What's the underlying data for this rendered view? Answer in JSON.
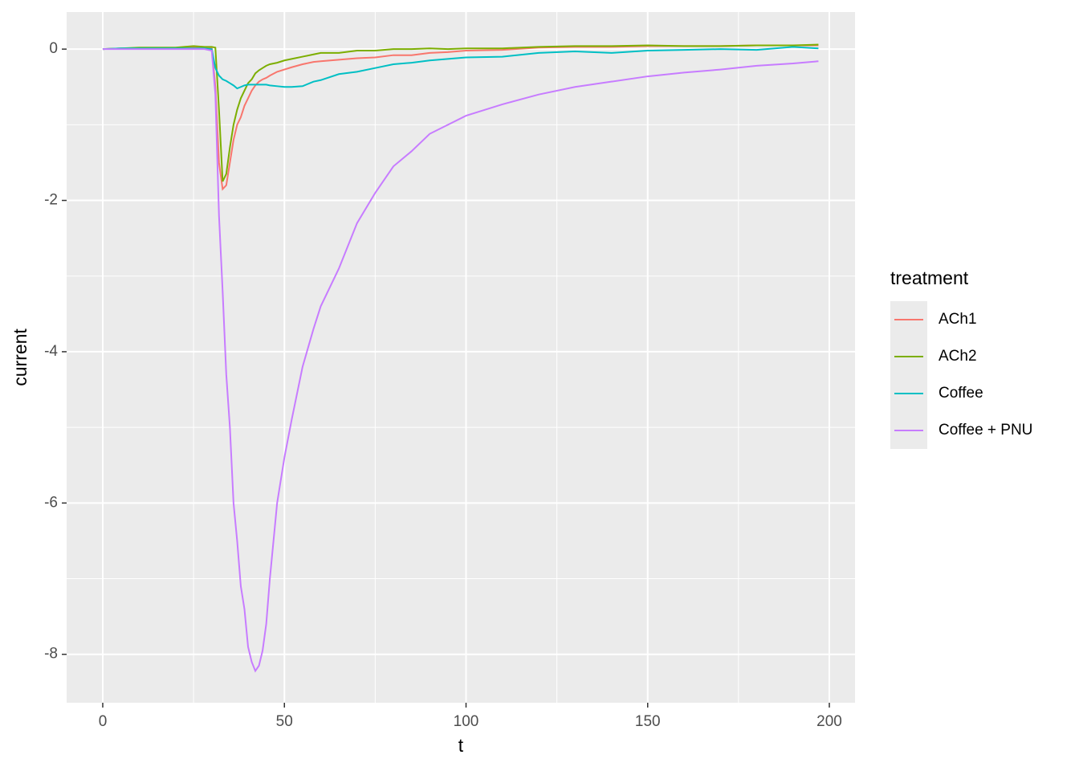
{
  "chart_data": {
    "type": "line",
    "x_label": "t",
    "y_label": "current",
    "legend_title": "treatment",
    "legend": "right",
    "x": [
      0,
      5,
      10,
      15,
      20,
      25,
      28,
      30,
      31,
      32,
      33,
      34,
      35,
      36,
      37,
      38,
      39,
      40,
      41,
      42,
      43,
      44,
      45,
      46,
      48,
      50,
      52,
      55,
      58,
      60,
      65,
      70,
      75,
      80,
      85,
      90,
      95,
      100,
      110,
      120,
      130,
      140,
      150,
      160,
      170,
      180,
      190,
      197
    ],
    "series": [
      {
        "name": "ACh1",
        "color": "#F8766D",
        "values": [
          0,
          0.01,
          0.01,
          0.01,
          0.01,
          0.03,
          0.02,
          0.02,
          -0.5,
          -1.5,
          -1.85,
          -1.8,
          -1.5,
          -1.2,
          -1.0,
          -0.9,
          -0.75,
          -0.65,
          -0.55,
          -0.48,
          -0.43,
          -0.4,
          -0.38,
          -0.35,
          -0.3,
          -0.27,
          -0.24,
          -0.2,
          -0.17,
          -0.16,
          -0.14,
          -0.12,
          -0.11,
          -0.08,
          -0.08,
          -0.05,
          -0.04,
          -0.02,
          -0.01,
          0.02,
          0.03,
          0.03,
          0.04,
          0.04,
          0.04,
          0.05,
          0.05,
          0.05
        ]
      },
      {
        "name": "ACh2",
        "color": "#7CAE00",
        "values": [
          0,
          0.01,
          0.02,
          0.02,
          0.02,
          0.04,
          0.03,
          0.03,
          0.02,
          -0.8,
          -1.75,
          -1.65,
          -1.3,
          -1.0,
          -0.8,
          -0.65,
          -0.55,
          -0.45,
          -0.4,
          -0.32,
          -0.28,
          -0.25,
          -0.22,
          -0.2,
          -0.18,
          -0.15,
          -0.13,
          -0.1,
          -0.07,
          -0.05,
          -0.05,
          -0.02,
          -0.02,
          0,
          0,
          0.01,
          0,
          0.01,
          0.01,
          0.03,
          0.04,
          0.04,
          0.05,
          0.04,
          0.04,
          0.05,
          0.05,
          0.06
        ]
      },
      {
        "name": "Coffee",
        "color": "#00BFC4",
        "values": [
          0,
          0.01,
          0.01,
          0.01,
          0.01,
          0.01,
          0.01,
          0,
          -0.25,
          -0.35,
          -0.4,
          -0.42,
          -0.45,
          -0.48,
          -0.52,
          -0.5,
          -0.48,
          -0.47,
          -0.47,
          -0.47,
          -0.47,
          -0.47,
          -0.47,
          -0.48,
          -0.49,
          -0.5,
          -0.5,
          -0.49,
          -0.43,
          -0.41,
          -0.33,
          -0.3,
          -0.25,
          -0.2,
          -0.18,
          -0.15,
          -0.13,
          -0.11,
          -0.1,
          -0.05,
          -0.03,
          -0.05,
          -0.02,
          -0.01,
          0,
          -0.01,
          0.03,
          0.01
        ]
      },
      {
        "name": "Coffee + PNU",
        "color": "#C77CFF",
        "values": [
          0,
          0,
          0,
          0,
          0,
          0,
          0,
          -0.02,
          -0.6,
          -2.2,
          -3.2,
          -4.3,
          -5.0,
          -6.0,
          -6.5,
          -7.1,
          -7.4,
          -7.9,
          -8.1,
          -8.22,
          -8.15,
          -7.95,
          -7.6,
          -7.0,
          -6.0,
          -5.4,
          -4.9,
          -4.2,
          -3.7,
          -3.4,
          -2.9,
          -2.3,
          -1.9,
          -1.55,
          -1.35,
          -1.12,
          -1.0,
          -0.88,
          -0.73,
          -0.6,
          -0.5,
          -0.43,
          -0.36,
          -0.31,
          -0.27,
          -0.22,
          -0.19,
          -0.16
        ]
      }
    ],
    "xlim": [
      -9.94,
      207.07
    ],
    "ylim": [
      -8.64,
      0.49
    ],
    "xticks": [
      0,
      50,
      100,
      150,
      200
    ],
    "yticks": [
      0,
      -2,
      -4,
      -6,
      -8
    ],
    "x_minor_grid": [
      25,
      75,
      125,
      175
    ],
    "y_minor_grid": [
      -1,
      -3,
      -5,
      -7
    ],
    "grid": true
  }
}
